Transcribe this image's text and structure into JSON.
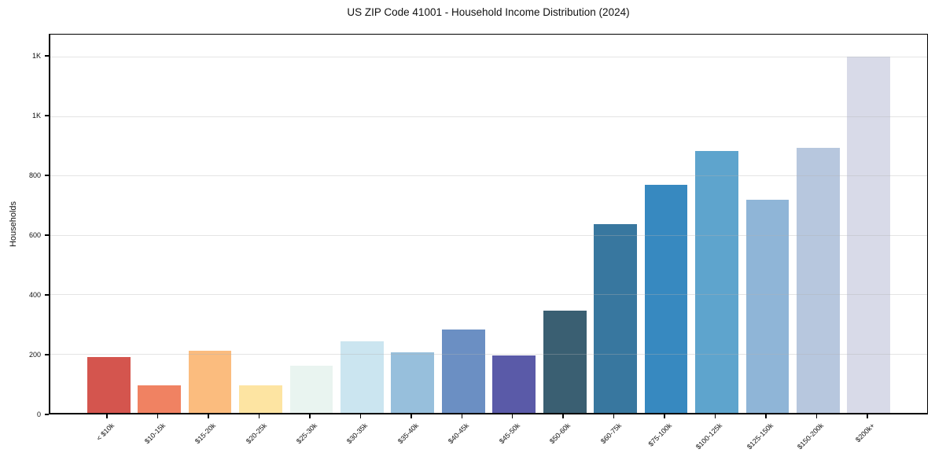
{
  "chart_data": {
    "type": "bar",
    "title": "US ZIP Code 41001 - Household Income Distribution (2024)",
    "xlabel": "",
    "ylabel": "Households",
    "categories": [
      "< $10k",
      "$10-15k",
      "$15-20k",
      "$20-25k",
      "$25-30k",
      "$30-35k",
      "$35-40k",
      "$40-45k",
      "$45-50k",
      "$50-60k",
      "$60-75k",
      "$75-100k",
      "$100-125k",
      "$125-150k",
      "$150-200k",
      "$200k+"
    ],
    "values": [
      187,
      92,
      210,
      92,
      160,
      241,
      205,
      281,
      194,
      345,
      637,
      770,
      882,
      718,
      894,
      1200
    ],
    "bar_colors": [
      "#d4554e",
      "#f08262",
      "#fbbc7e",
      "#fde4a2",
      "#e9f4f0",
      "#cbe5f0",
      "#97bfdc",
      "#6b8fc3",
      "#5a5aa8",
      "#3a5f72",
      "#38779f",
      "#3789c0",
      "#5ea4cd",
      "#8fb5d7",
      "#b7c7de",
      "#d8dae8"
    ],
    "yticks": [
      {
        "value": 0,
        "label": "0"
      },
      {
        "value": 200,
        "label": "200"
      },
      {
        "value": 400,
        "label": "400"
      },
      {
        "value": 600,
        "label": "600"
      },
      {
        "value": 800,
        "label": "800"
      },
      {
        "value": 1000,
        "label": "1K"
      },
      {
        "value": 1200,
        "label": "1K"
      }
    ],
    "ylim": [
      0,
      1275
    ],
    "grid": "horizontal-light-above-bars",
    "legend": "none",
    "spines": "full-box",
    "x_tick_rotation_deg": 45
  }
}
